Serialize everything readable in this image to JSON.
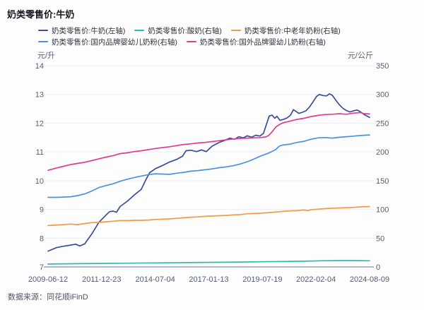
{
  "title": "奶类零售价:牛奶",
  "source": "数据来源：同花顺iFinD",
  "axes": {
    "left_unit": "元/升",
    "right_unit": "元/公斤"
  },
  "chart_data": {
    "type": "line",
    "title": "奶类零售价:牛奶",
    "grid": true,
    "legend_position": "top",
    "x_label_note": "weekly dates; points use fraction 0-1 of span 2009-06-12 to 2024-08-09",
    "x_ticks": [
      "2009-06-12",
      "2011-12-23",
      "2014-07-04",
      "2017-01-13",
      "2019-07-19",
      "2022-02-04",
      "2024-08-09"
    ],
    "left_axis": {
      "label": "元/升",
      "min": 7,
      "max": 14,
      "ticks": [
        7,
        8,
        9,
        10,
        11,
        12,
        13,
        14
      ]
    },
    "right_axis": {
      "label": "元/公斤",
      "min": 0,
      "max": 350,
      "ticks": [
        0,
        50,
        100,
        150,
        200,
        250,
        300,
        350
      ]
    },
    "series": [
      {
        "name": "奶类零售价:牛奶(左轴)",
        "axis": "left",
        "color": "#3c4c9d",
        "points": [
          [
            0,
            7.55
          ],
          [
            0.026,
            7.67
          ],
          [
            0.048,
            7.72
          ],
          [
            0.07,
            7.76
          ],
          [
            0.086,
            7.79
          ],
          [
            0.099,
            7.73
          ],
          [
            0.114,
            7.8
          ],
          [
            0.136,
            8.15
          ],
          [
            0.158,
            8.55
          ],
          [
            0.18,
            8.8
          ],
          [
            0.191,
            8.92
          ],
          [
            0.202,
            8.94
          ],
          [
            0.213,
            8.9
          ],
          [
            0.224,
            9.1
          ],
          [
            0.246,
            9.28
          ],
          [
            0.268,
            9.5
          ],
          [
            0.29,
            9.7
          ],
          [
            0.305,
            10.05
          ],
          [
            0.316,
            10.28
          ],
          [
            0.334,
            10.42
          ],
          [
            0.356,
            10.53
          ],
          [
            0.378,
            10.65
          ],
          [
            0.4,
            10.74
          ],
          [
            0.418,
            10.85
          ],
          [
            0.429,
            11.04
          ],
          [
            0.444,
            11.06
          ],
          [
            0.462,
            11.01
          ],
          [
            0.477,
            11.07
          ],
          [
            0.492,
            11.01
          ],
          [
            0.51,
            11.2
          ],
          [
            0.532,
            11.33
          ],
          [
            0.549,
            11.4
          ],
          [
            0.565,
            11.48
          ],
          [
            0.58,
            11.44
          ],
          [
            0.593,
            11.53
          ],
          [
            0.607,
            11.49
          ],
          [
            0.62,
            11.56
          ],
          [
            0.633,
            11.51
          ],
          [
            0.646,
            11.58
          ],
          [
            0.659,
            11.55
          ],
          [
            0.67,
            11.65
          ],
          [
            0.679,
            11.95
          ],
          [
            0.688,
            12.25
          ],
          [
            0.697,
            12.28
          ],
          [
            0.705,
            12.17
          ],
          [
            0.712,
            12.24
          ],
          [
            0.721,
            12.1
          ],
          [
            0.732,
            12.13
          ],
          [
            0.743,
            12.18
          ],
          [
            0.754,
            12.28
          ],
          [
            0.763,
            12.47
          ],
          [
            0.771,
            12.41
          ],
          [
            0.78,
            12.34
          ],
          [
            0.791,
            12.38
          ],
          [
            0.802,
            12.43
          ],
          [
            0.813,
            12.56
          ],
          [
            0.824,
            12.74
          ],
          [
            0.835,
            12.93
          ],
          [
            0.844,
            13.0
          ],
          [
            0.855,
            12.96
          ],
          [
            0.866,
            12.95
          ],
          [
            0.875,
            13.02
          ],
          [
            0.884,
            12.97
          ],
          [
            0.895,
            12.8
          ],
          [
            0.906,
            12.64
          ],
          [
            0.917,
            12.52
          ],
          [
            0.928,
            12.44
          ],
          [
            0.939,
            12.39
          ],
          [
            0.95,
            12.43
          ],
          [
            0.961,
            12.46
          ],
          [
            0.972,
            12.39
          ],
          [
            0.983,
            12.3
          ],
          [
            1,
            12.2
          ]
        ]
      },
      {
        "name": "奶类零售价:酸奶(右轴)",
        "axis": "right",
        "color": "#2cbcad",
        "points": [
          [
            0,
            5
          ],
          [
            0.07,
            5.5
          ],
          [
            0.158,
            6
          ],
          [
            0.246,
            6.5
          ],
          [
            0.334,
            7
          ],
          [
            0.422,
            7.5
          ],
          [
            0.51,
            8
          ],
          [
            0.598,
            8.5
          ],
          [
            0.662,
            9
          ],
          [
            0.73,
            9.5
          ],
          [
            0.796,
            10
          ],
          [
            0.862,
            10.8
          ],
          [
            0.906,
            11
          ],
          [
            0.95,
            11
          ],
          [
            1,
            10.7
          ]
        ]
      },
      {
        "name": "奶类零售价:中老年奶粉(右轴)",
        "axis": "right",
        "color": "#f19b45",
        "points": [
          [
            0,
            72
          ],
          [
            0.048,
            73.5
          ],
          [
            0.07,
            74.5
          ],
          [
            0.092,
            73.5
          ],
          [
            0.114,
            75.5
          ],
          [
            0.136,
            77
          ],
          [
            0.158,
            77.5
          ],
          [
            0.18,
            78.5
          ],
          [
            0.202,
            79.5
          ],
          [
            0.224,
            80.5
          ],
          [
            0.246,
            80.5
          ],
          [
            0.268,
            81
          ],
          [
            0.29,
            81
          ],
          [
            0.312,
            81.5
          ],
          [
            0.334,
            82.5
          ],
          [
            0.356,
            83
          ],
          [
            0.378,
            83.5
          ],
          [
            0.4,
            84.5
          ],
          [
            0.422,
            85.5
          ],
          [
            0.444,
            86.5
          ],
          [
            0.466,
            87
          ],
          [
            0.488,
            88
          ],
          [
            0.51,
            88.5
          ],
          [
            0.532,
            89
          ],
          [
            0.554,
            89.5
          ],
          [
            0.576,
            90.5
          ],
          [
            0.598,
            91
          ],
          [
            0.62,
            92.5
          ],
          [
            0.642,
            93
          ],
          [
            0.662,
            93.5
          ],
          [
            0.686,
            94.5
          ],
          [
            0.708,
            95.5
          ],
          [
            0.73,
            96.5
          ],
          [
            0.752,
            97.5
          ],
          [
            0.774,
            98
          ],
          [
            0.796,
            99
          ],
          [
            0.807,
            98
          ],
          [
            0.818,
            99.5
          ],
          [
            0.84,
            100.5
          ],
          [
            0.862,
            101.5
          ],
          [
            0.884,
            102
          ],
          [
            0.906,
            102.5
          ],
          [
            0.928,
            103
          ],
          [
            0.95,
            103.5
          ],
          [
            0.972,
            104.5
          ],
          [
            1,
            105
          ]
        ]
      },
      {
        "name": "奶类零售价:国内品牌婴幼儿奶粉(右轴)",
        "axis": "right",
        "color": "#4a92dd",
        "points": [
          [
            0,
            121
          ],
          [
            0.026,
            121
          ],
          [
            0.048,
            121.5
          ],
          [
            0.07,
            122
          ],
          [
            0.092,
            124
          ],
          [
            0.114,
            127
          ],
          [
            0.136,
            132
          ],
          [
            0.158,
            138
          ],
          [
            0.18,
            141.5
          ],
          [
            0.202,
            144.5
          ],
          [
            0.224,
            149
          ],
          [
            0.246,
            152.5
          ],
          [
            0.268,
            155.5
          ],
          [
            0.29,
            158
          ],
          [
            0.312,
            160.5
          ],
          [
            0.334,
            162
          ],
          [
            0.356,
            161.5
          ],
          [
            0.378,
            161
          ],
          [
            0.4,
            163
          ],
          [
            0.422,
            164.5
          ],
          [
            0.444,
            166.5
          ],
          [
            0.466,
            167.5
          ],
          [
            0.488,
            169
          ],
          [
            0.51,
            170.5
          ],
          [
            0.532,
            172.5
          ],
          [
            0.554,
            174
          ],
          [
            0.576,
            176
          ],
          [
            0.598,
            179
          ],
          [
            0.62,
            183
          ],
          [
            0.642,
            188
          ],
          [
            0.662,
            193
          ],
          [
            0.686,
            198
          ],
          [
            0.708,
            204
          ],
          [
            0.719,
            210
          ],
          [
            0.73,
            212
          ],
          [
            0.752,
            213.5
          ],
          [
            0.774,
            216.5
          ],
          [
            0.796,
            218.5
          ],
          [
            0.818,
            222
          ],
          [
            0.84,
            224.5
          ],
          [
            0.862,
            225
          ],
          [
            0.884,
            224
          ],
          [
            0.906,
            225.5
          ],
          [
            0.928,
            226.5
          ],
          [
            0.95,
            227.5
          ],
          [
            0.972,
            228.5
          ],
          [
            1,
            229.5
          ]
        ]
      },
      {
        "name": "奶类零售价:国外品牌婴幼儿奶粉(右轴)",
        "axis": "right",
        "color": "#e23b8d",
        "points": [
          [
            0,
            168
          ],
          [
            0.026,
            172
          ],
          [
            0.048,
            175
          ],
          [
            0.07,
            178
          ],
          [
            0.092,
            180
          ],
          [
            0.114,
            182
          ],
          [
            0.136,
            185
          ],
          [
            0.158,
            188
          ],
          [
            0.18,
            191
          ],
          [
            0.202,
            193.5
          ],
          [
            0.224,
            197
          ],
          [
            0.246,
            198.5
          ],
          [
            0.268,
            200.5
          ],
          [
            0.29,
            202
          ],
          [
            0.312,
            204
          ],
          [
            0.334,
            206
          ],
          [
            0.356,
            207.5
          ],
          [
            0.378,
            209
          ],
          [
            0.4,
            211
          ],
          [
            0.422,
            213
          ],
          [
            0.444,
            214
          ],
          [
            0.466,
            215.5
          ],
          [
            0.488,
            216.5
          ],
          [
            0.51,
            218
          ],
          [
            0.532,
            219.5
          ],
          [
            0.554,
            221
          ],
          [
            0.576,
            222.5
          ],
          [
            0.598,
            223.5
          ],
          [
            0.62,
            224
          ],
          [
            0.642,
            224.5
          ],
          [
            0.662,
            225
          ],
          [
            0.679,
            226.5
          ],
          [
            0.686,
            228.5
          ],
          [
            0.697,
            235
          ],
          [
            0.708,
            243
          ],
          [
            0.719,
            247.5
          ],
          [
            0.73,
            250.5
          ],
          [
            0.752,
            253.5
          ],
          [
            0.774,
            256.5
          ],
          [
            0.796,
            258.5
          ],
          [
            0.818,
            261.5
          ],
          [
            0.84,
            263.5
          ],
          [
            0.862,
            265
          ],
          [
            0.884,
            265.5
          ],
          [
            0.906,
            266.5
          ],
          [
            0.928,
            265.5
          ],
          [
            0.95,
            267.5
          ],
          [
            0.961,
            268
          ],
          [
            0.972,
            268.5
          ],
          [
            0.983,
            266.5
          ],
          [
            1,
            266
          ]
        ]
      }
    ]
  }
}
